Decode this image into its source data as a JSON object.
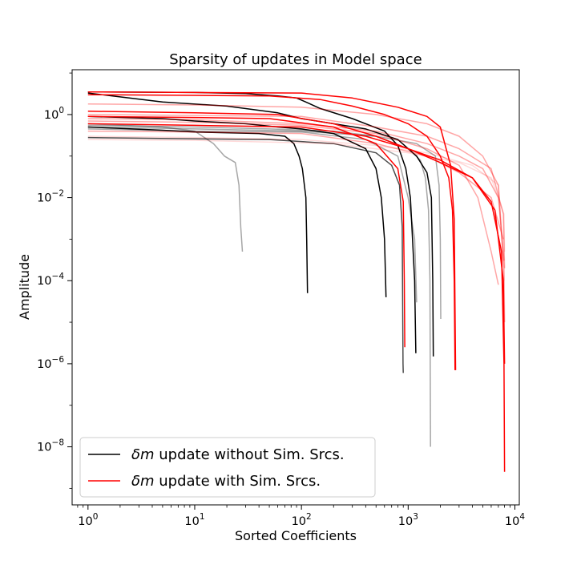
{
  "chart_data": {
    "type": "line",
    "title": "Sparsity of updates in Model space",
    "xlabel": "Sorted Coefficients",
    "ylabel": "Amplitude",
    "xscale": "log",
    "yscale": "log",
    "xlim": [
      0.71,
      11000
    ],
    "ylim": [
      4e-10,
      12
    ],
    "grid": false,
    "legend_position": "lower-left",
    "x_ticks": [
      {
        "value": 1,
        "base": "10",
        "exp": "0"
      },
      {
        "value": 10,
        "base": "10",
        "exp": "1"
      },
      {
        "value": 100,
        "base": "10",
        "exp": "2"
      },
      {
        "value": 1000,
        "base": "10",
        "exp": "3"
      },
      {
        "value": 10000,
        "base": "10",
        "exp": "4"
      }
    ],
    "y_ticks": [
      {
        "value": 1,
        "base": "10",
        "exp": "0"
      },
      {
        "value": 0.01,
        "base": "10",
        "exp": "−2"
      },
      {
        "value": 0.0001,
        "base": "10",
        "exp": "−4"
      },
      {
        "value": 1e-06,
        "base": "10",
        "exp": "−6"
      },
      {
        "value": 1e-08,
        "base": "10",
        "exp": "−8"
      }
    ],
    "legend": [
      {
        "symbol": "δm",
        "text": " update without Sim. Srcs.",
        "color": "#000000"
      },
      {
        "symbol": "δm",
        "text": " update with Sim. Srcs.",
        "color": "#ff0000"
      }
    ],
    "series": [
      {
        "color": "#000000",
        "opacity": 1.0,
        "points": [
          [
            1,
            3.3
          ],
          [
            5,
            2.0
          ],
          [
            20,
            1.6
          ],
          [
            60,
            1.1
          ],
          [
            100,
            0.8
          ],
          [
            200,
            0.6
          ],
          [
            400,
            0.45
          ],
          [
            800,
            0.25
          ],
          [
            1200,
            0.1
          ],
          [
            1500,
            0.04
          ],
          [
            1650,
            0.01
          ],
          [
            1700,
            0.0001
          ],
          [
            1720,
            1.5e-06
          ]
        ]
      },
      {
        "color": "#000000",
        "opacity": 1.0,
        "points": [
          [
            1,
            3.5
          ],
          [
            10,
            3.4
          ],
          [
            30,
            3.2
          ],
          [
            60,
            2.8
          ],
          [
            90,
            2.5
          ],
          [
            110,
            2.0
          ],
          [
            150,
            1.4
          ],
          [
            300,
            0.8
          ],
          [
            600,
            0.4
          ],
          [
            800,
            0.18
          ],
          [
            950,
            0.05
          ],
          [
            1050,
            0.01
          ],
          [
            1150,
            0.0001
          ],
          [
            1180,
            1.8e-06
          ]
        ]
      },
      {
        "color": "#000000",
        "opacity": 1.0,
        "points": [
          [
            1,
            0.9
          ],
          [
            5,
            0.8
          ],
          [
            10,
            0.7
          ],
          [
            30,
            0.6
          ],
          [
            60,
            0.5
          ],
          [
            100,
            0.45
          ],
          [
            200,
            0.35
          ],
          [
            400,
            0.15
          ],
          [
            500,
            0.05
          ],
          [
            560,
            0.01
          ],
          [
            600,
            0.001
          ],
          [
            620,
            4e-05
          ]
        ]
      },
      {
        "color": "#000000",
        "opacity": 1.0,
        "points": [
          [
            1,
            0.5
          ],
          [
            5,
            0.42
          ],
          [
            10,
            0.38
          ],
          [
            40,
            0.35
          ],
          [
            70,
            0.3
          ],
          [
            85,
            0.2
          ],
          [
            95,
            0.1
          ],
          [
            102,
            0.05
          ],
          [
            110,
            0.01
          ],
          [
            112,
            0.001
          ],
          [
            114,
            5e-05
          ]
        ]
      },
      {
        "color": "#000000",
        "opacity": 0.7,
        "points": [
          [
            1,
            0.28
          ],
          [
            10,
            0.26
          ],
          [
            50,
            0.25
          ],
          [
            200,
            0.2
          ],
          [
            500,
            0.12
          ],
          [
            700,
            0.06
          ],
          [
            830,
            0.02
          ],
          [
            880,
            0.002
          ],
          [
            895,
            1e-06
          ],
          [
            900,
            6e-07
          ]
        ]
      },
      {
        "color": "#000000",
        "opacity": 0.35,
        "points": [
          [
            1,
            0.6
          ],
          [
            5,
            0.5
          ],
          [
            10,
            0.4
          ],
          [
            15,
            0.2
          ],
          [
            19,
            0.1
          ],
          [
            24,
            0.07
          ],
          [
            26,
            0.02
          ],
          [
            27,
            0.002
          ],
          [
            28,
            0.0005
          ]
        ]
      },
      {
        "color": "#000000",
        "opacity": 0.35,
        "points": [
          [
            1,
            0.55
          ],
          [
            10,
            0.5
          ],
          [
            50,
            0.45
          ],
          [
            200,
            0.4
          ],
          [
            500,
            0.3
          ],
          [
            1000,
            0.15
          ],
          [
            1300,
            0.08
          ],
          [
            1450,
            0.03
          ],
          [
            1550,
            0.005
          ],
          [
            1600,
            0.0001
          ],
          [
            1620,
            1e-08
          ]
        ]
      },
      {
        "color": "#000000",
        "opacity": 0.35,
        "points": [
          [
            1,
            0.5
          ],
          [
            10,
            0.45
          ],
          [
            100,
            0.4
          ],
          [
            500,
            0.3
          ],
          [
            1200,
            0.2
          ],
          [
            1800,
            0.1
          ],
          [
            1950,
            0.02
          ],
          [
            2000,
            0.001
          ],
          [
            2020,
            1.2e-05
          ]
        ]
      },
      {
        "color": "#000000",
        "opacity": 0.35,
        "points": [
          [
            1,
            0.45
          ],
          [
            10,
            0.4
          ],
          [
            100,
            0.38
          ],
          [
            400,
            0.25
          ],
          [
            800,
            0.1
          ],
          [
            1000,
            0.01
          ],
          [
            1150,
            0.001
          ],
          [
            1200,
            3e-05
          ]
        ]
      },
      {
        "color": "#ff0000",
        "opacity": 1.0,
        "points": [
          [
            1,
            3.0
          ],
          [
            10,
            2.9
          ],
          [
            50,
            2.8
          ],
          [
            150,
            2.3
          ],
          [
            300,
            1.6
          ],
          [
            600,
            1.0
          ],
          [
            1000,
            0.6
          ],
          [
            1500,
            0.3
          ],
          [
            2000,
            0.1
          ],
          [
            2400,
            0.03
          ],
          [
            2600,
            0.005
          ],
          [
            2700,
            0.0001
          ],
          [
            2750,
            7e-07
          ]
        ]
      },
      {
        "color": "#ff0000",
        "opacity": 1.0,
        "points": [
          [
            1,
            3.5
          ],
          [
            10,
            3.4
          ],
          [
            100,
            3.3
          ],
          [
            300,
            2.5
          ],
          [
            800,
            1.5
          ],
          [
            1500,
            0.9
          ],
          [
            2000,
            0.5
          ],
          [
            2500,
            0.06
          ],
          [
            2700,
            0.003
          ],
          [
            2780,
            7e-07
          ]
        ]
      },
      {
        "color": "#ff0000",
        "opacity": 1.0,
        "points": [
          [
            1,
            1.2
          ],
          [
            10,
            1.1
          ],
          [
            60,
            1.0
          ],
          [
            200,
            0.6
          ],
          [
            500,
            0.3
          ],
          [
            1000,
            0.15
          ],
          [
            2000,
            0.07
          ],
          [
            4000,
            0.03
          ],
          [
            6000,
            0.008
          ],
          [
            7500,
            0.0005
          ],
          [
            7900,
            1e-06
          ],
          [
            8000,
            2.5e-09
          ]
        ]
      },
      {
        "color": "#ff0000",
        "opacity": 1.0,
        "points": [
          [
            1,
            0.9
          ],
          [
            10,
            0.85
          ],
          [
            50,
            0.8
          ],
          [
            200,
            0.5
          ],
          [
            500,
            0.2
          ],
          [
            800,
            0.05
          ],
          [
            900,
            0.008
          ],
          [
            920,
            0.0001
          ],
          [
            930,
            2.5e-06
          ]
        ]
      },
      {
        "color": "#ff0000",
        "opacity": 1.0,
        "points": [
          [
            1,
            0.6
          ],
          [
            10,
            0.55
          ],
          [
            100,
            0.5
          ],
          [
            400,
            0.3
          ],
          [
            1000,
            0.15
          ],
          [
            2000,
            0.08
          ],
          [
            4000,
            0.03
          ],
          [
            6500,
            0.005
          ],
          [
            7800,
            0.0001
          ],
          [
            8000,
            1e-06
          ]
        ]
      },
      {
        "color": "#ff0000",
        "opacity": 0.35,
        "points": [
          [
            1,
            1.8
          ],
          [
            10,
            1.7
          ],
          [
            100,
            1.5
          ],
          [
            500,
            1.0
          ],
          [
            1500,
            0.6
          ],
          [
            3000,
            0.3
          ],
          [
            5000,
            0.1
          ],
          [
            7000,
            0.02
          ],
          [
            7900,
            0.0002
          ],
          [
            8000,
            1e-05
          ]
        ]
      },
      {
        "color": "#ff0000",
        "opacity": 0.35,
        "points": [
          [
            1,
            0.8
          ],
          [
            10,
            0.75
          ],
          [
            100,
            0.6
          ],
          [
            500,
            0.4
          ],
          [
            1500,
            0.2
          ],
          [
            3000,
            0.1
          ],
          [
            5000,
            0.05
          ],
          [
            7000,
            0.01
          ],
          [
            7900,
            0.0003
          ]
        ]
      },
      {
        "color": "#ff0000",
        "opacity": 0.35,
        "points": [
          [
            1,
            0.7
          ],
          [
            10,
            0.65
          ],
          [
            100,
            0.55
          ],
          [
            500,
            0.35
          ],
          [
            1500,
            0.15
          ],
          [
            3000,
            0.06
          ],
          [
            4500,
            0.01
          ],
          [
            6000,
            0.0005
          ],
          [
            7000,
            8e-05
          ]
        ]
      },
      {
        "color": "#ff0000",
        "opacity": 0.35,
        "points": [
          [
            1,
            1.0
          ],
          [
            10,
            0.95
          ],
          [
            100,
            0.9
          ],
          [
            500,
            0.5
          ],
          [
            1500,
            0.3
          ],
          [
            3000,
            0.15
          ],
          [
            6000,
            0.05
          ],
          [
            7800,
            0.004
          ],
          [
            8000,
            0.0002
          ]
        ]
      },
      {
        "color": "#ff0000",
        "opacity": 0.35,
        "points": [
          [
            1,
            0.4
          ],
          [
            10,
            0.38
          ],
          [
            100,
            0.35
          ],
          [
            500,
            0.2
          ],
          [
            1500,
            0.1
          ],
          [
            3000,
            0.04
          ],
          [
            6000,
            0.01
          ],
          [
            7800,
            0.001
          ]
        ]
      },
      {
        "color": "#ff0000",
        "opacity": 0.15,
        "points": [
          [
            1,
            0.3
          ],
          [
            10,
            0.28
          ],
          [
            100,
            0.25
          ],
          [
            500,
            0.18
          ],
          [
            1500,
            0.12
          ],
          [
            4000,
            0.06
          ],
          [
            7000,
            0.02
          ],
          [
            7900,
            0.0001
          ]
        ]
      },
      {
        "color": "#ff0000",
        "opacity": 0.15,
        "points": [
          [
            1,
            0.25
          ],
          [
            10,
            0.24
          ],
          [
            200,
            0.2
          ],
          [
            1000,
            0.12
          ],
          [
            3000,
            0.07
          ],
          [
            6000,
            0.03
          ],
          [
            7900,
            0.004
          ],
          [
            8000,
            0.0005
          ]
        ]
      }
    ]
  }
}
